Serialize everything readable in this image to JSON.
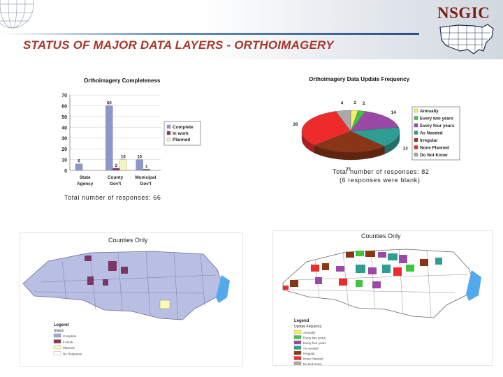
{
  "header": {
    "title": "STATUS OF MAJOR DATA LAYERS - ORTHOIMAGERY",
    "logo": "NSGIC"
  },
  "chart_data": [
    {
      "type": "bar",
      "title": "Orthoimagery Completeness",
      "categories": [
        "State Agency",
        "County Gov't",
        "Municipal Gov't"
      ],
      "series": [
        {
          "name": "Complete",
          "color": "#8e97cd",
          "values": [
            6,
            60,
            10
          ]
        },
        {
          "name": "In work",
          "color": "#8a3566",
          "values": [
            0,
            2,
            1
          ]
        },
        {
          "name": "Planned",
          "color": "#f4f4bf",
          "values": [
            0,
            10,
            0
          ]
        }
      ],
      "ylim": [
        0,
        70
      ],
      "yticks": [
        0,
        10,
        20,
        30,
        40,
        50,
        60,
        70
      ],
      "legend": "right",
      "note": "Total number of responses: 66"
    },
    {
      "type": "pie",
      "title": "Orthoimagery Data Update Frequency",
      "slices": [
        {
          "label": "Annually",
          "value": 2,
          "color": "#f6ee6a"
        },
        {
          "label": "Every two years",
          "value": 2,
          "color": "#3ec43e"
        },
        {
          "label": "Every four years",
          "value": 14,
          "color": "#9b49a7"
        },
        {
          "label": "As Needed",
          "value": 13,
          "color": "#2e9e92"
        },
        {
          "label": "Irregular",
          "value": 21,
          "color": "#8a3515"
        },
        {
          "label": "None Planned",
          "value": 26,
          "color": "#ee2b2b"
        },
        {
          "label": "Do Not Know",
          "value": 4,
          "color": "#a9a9a9"
        }
      ],
      "legend": "right",
      "note1": "Total number of responses: 82",
      "note2": "(6 responses were blank)"
    }
  ],
  "maps": [
    {
      "title": "Counties Only",
      "legend_title": "Legend",
      "legend_subtitle": "Status",
      "legend_items": [
        {
          "label": "Complete",
          "color": "#9ea6d8"
        },
        {
          "label": "In work",
          "color": "#8a3566"
        },
        {
          "label": "Planned",
          "color": "#fafab4"
        },
        {
          "label": "No Response",
          "color": "#ffffff"
        }
      ]
    },
    {
      "title": "Counties Only",
      "legend_title": "Legend",
      "legend_subtitle": "Update frequency",
      "legend_items": [
        {
          "label": "Annually",
          "color": "#f6ee6a"
        },
        {
          "label": "Every two years",
          "color": "#3ec43e"
        },
        {
          "label": "Every four years",
          "color": "#9b49a7"
        },
        {
          "label": "As needed",
          "color": "#2e9e92"
        },
        {
          "label": "Irregular",
          "color": "#8a3515"
        },
        {
          "label": "None Planned",
          "color": "#ee2b2b"
        },
        {
          "label": "Do Not Know",
          "color": "#a9a9a9"
        },
        {
          "label": "No Response",
          "color": "#ffffff"
        }
      ]
    }
  ]
}
